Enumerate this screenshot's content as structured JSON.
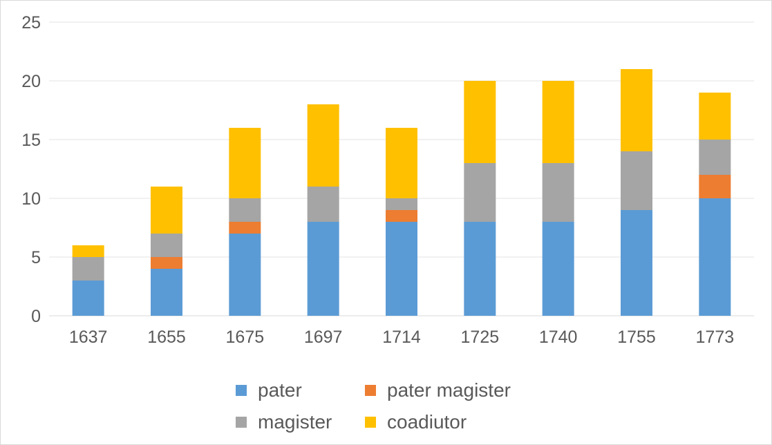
{
  "chart_data": {
    "type": "bar",
    "stacked": true,
    "title": "",
    "xlabel": "",
    "ylabel": "",
    "ylim": [
      0,
      25
    ],
    "yticks": [
      0,
      5,
      10,
      15,
      20,
      25
    ],
    "grid": true,
    "legend_position": "bottom",
    "categories": [
      "1637",
      "1655",
      "1675",
      "1697",
      "1714",
      "1725",
      "1740",
      "1755",
      "1773"
    ],
    "series": [
      {
        "name": "pater",
        "color": "#5b9bd5",
        "values": [
          3,
          4,
          7,
          8,
          8,
          8,
          8,
          9,
          10
        ]
      },
      {
        "name": "pater magister",
        "color": "#ed7d31",
        "values": [
          0,
          1,
          1,
          0,
          1,
          0,
          0,
          0,
          2
        ]
      },
      {
        "name": "magister",
        "color": "#a5a5a5",
        "values": [
          2,
          2,
          2,
          3,
          1,
          5,
          5,
          5,
          3
        ]
      },
      {
        "name": "coadiutor",
        "color": "#ffc000",
        "values": [
          1,
          4,
          6,
          7,
          6,
          7,
          7,
          7,
          4
        ]
      }
    ]
  }
}
